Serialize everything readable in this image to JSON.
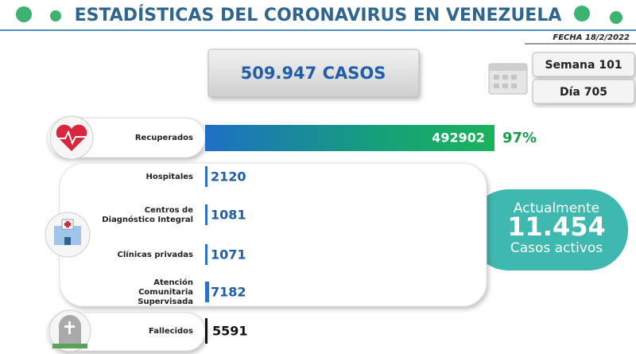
{
  "header": {
    "title": "ESTADÍSTICAS DEL CORONAVIRUS EN VENEZUELA",
    "date": "FECHA 18/2/2022"
  },
  "total": "509.947 CASOS",
  "week": "Semana 101",
  "day": "Día 705",
  "recovered": {
    "label": "Recuperados",
    "value": "492902",
    "percent": "97%"
  },
  "locations": [
    {
      "label": [
        "Hospitales"
      ],
      "value": "2120"
    },
    {
      "label": [
        "Centros de",
        "Diagnóstico Integral"
      ],
      "value": "1081"
    },
    {
      "label": [
        "Clínicas privadas"
      ],
      "value": "1071"
    },
    {
      "label": [
        "Atención",
        "Comunitaria",
        "Supervisada"
      ],
      "value": "7182"
    }
  ],
  "active": {
    "caption": "Actualmente",
    "value": "11.454",
    "subcaption": "Casos activos"
  },
  "deaths": {
    "label": "Fallecidos",
    "value": "5591"
  }
}
